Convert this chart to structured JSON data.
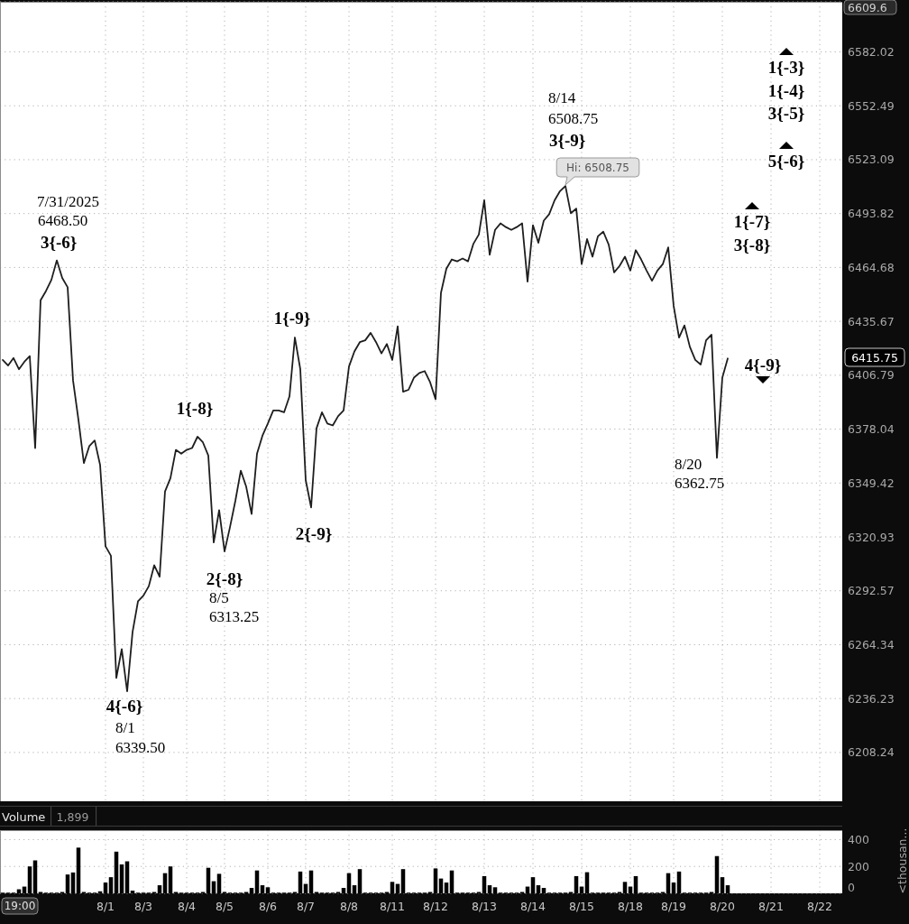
{
  "chart_data": [
    {
      "type": "line",
      "categories": [
        null,
        null,
        null,
        null,
        null,
        null,
        null,
        null,
        null,
        null,
        null,
        null,
        null,
        null,
        null,
        null,
        null,
        null,
        null,
        null,
        null,
        null,
        null,
        null,
        null,
        null,
        null,
        null,
        null,
        null,
        null,
        null,
        null,
        null,
        null,
        null,
        null,
        null,
        null,
        null,
        null,
        null,
        null,
        null,
        null,
        null,
        null,
        null,
        null,
        null,
        null,
        null,
        null,
        null,
        null,
        null,
        null,
        null,
        null,
        null,
        null,
        null,
        null,
        null,
        null,
        null,
        null,
        null,
        null,
        null,
        null,
        null,
        null,
        null,
        null,
        null,
        null,
        null,
        null,
        null,
        null,
        null,
        null,
        null,
        null,
        null,
        null,
        null,
        null,
        null,
        null,
        null,
        null,
        null,
        null,
        null,
        null,
        null,
        null,
        null,
        null,
        null,
        null,
        null,
        null,
        null,
        null,
        null,
        null,
        null,
        null,
        null,
        null,
        null,
        null,
        null,
        null,
        null,
        null,
        null,
        null,
        null,
        null,
        null,
        null,
        null,
        null,
        null,
        null,
        null,
        null,
        null,
        null,
        null,
        null,
        null,
        null,
        null,
        null,
        null,
        null,
        null,
        null,
        null,
        null,
        null,
        null,
        null,
        null,
        null,
        null,
        null,
        null,
        null,
        null,
        null
      ],
      "series": [
        {
          "color": "#1e1e1e",
          "values": [
            6415,
            6412,
            6416,
            6410,
            6414,
            6417,
            6368,
            6447,
            6452,
            6458,
            6468.5,
            6459,
            6454,
            6404,
            6383,
            6360,
            6369,
            6372,
            6359,
            6316,
            6311,
            6247,
            6262,
            6240,
            6271,
            6287,
            6290,
            6295,
            6306,
            6300,
            6345,
            6352,
            6367,
            6365,
            6367,
            6368,
            6374,
            6371,
            6364,
            6318,
            6335,
            6313.25,
            6326,
            6340,
            6356,
            6347.5,
            6333,
            6365,
            6374.5,
            6381,
            6388,
            6388,
            6387,
            6395.5,
            6427,
            6410,
            6351,
            6336.5,
            6378.5,
            6387,
            6381,
            6380,
            6385,
            6388,
            6411.5,
            6419.5,
            6424.5,
            6425.5,
            6429.5,
            6424.5,
            6418.5,
            6423.5,
            6415,
            6433,
            6398,
            6399,
            6405.5,
            6408,
            6409,
            6403,
            6394,
            6451,
            6464,
            6469,
            6468,
            6469.5,
            6468,
            6477.5,
            6482.5,
            6501,
            6471.5,
            6485,
            6488.5,
            6486.5,
            6485,
            6486.5,
            6488.5,
            6457,
            6487.5,
            6478,
            6490,
            6493.5,
            6501,
            6506,
            6508.75,
            6494,
            6496.5,
            6466.5,
            6480,
            6470.5,
            6481.5,
            6484,
            6477,
            6462,
            6465.5,
            6470.5,
            6463,
            6474,
            6469,
            6463,
            6457.5,
            6463,
            6466.5,
            6475.5,
            6444,
            6427,
            6433.5,
            6422,
            6415,
            6412.5,
            6425.5,
            6428.5,
            6362.75,
            6405.5,
            6415.75,
            null,
            null,
            null,
            null,
            null,
            null,
            null,
            null,
            null,
            null,
            null,
            null,
            null,
            null,
            null,
            null,
            null,
            null,
            null,
            null,
            null
          ]
        }
      ],
      "ylim": [
        6183,
        6609.6
      ],
      "yticks": [
        6208.24,
        6236.23,
        6264.34,
        6292.57,
        6320.93,
        6349.42,
        6378.04,
        6406.79,
        6435.67,
        6464.68,
        6493.82,
        6523.09,
        6552.49,
        6582.02,
        6609.6
      ],
      "log": true,
      "grid": true,
      "tick_labels": "y",
      "annotations": [
        "7/31/2025",
        "6468.50",
        "3{-6}",
        "1{-8}",
        "1{-9}",
        "2{-8}",
        "8/5",
        "6313.25",
        "2{-9}",
        "4{-6}",
        "8/1",
        "6339.50",
        "8/14",
        "6508.75",
        "3{-9}",
        "Hi: 6508.75",
        "1{-3}",
        "1{-4}",
        "3{-5}",
        "5{-6}",
        "1{-7}",
        "3{-8}",
        "4{-9}",
        "8/20",
        "6362.75",
        "6415.75"
      ]
    },
    {
      "type": "bar",
      "title": "Volume",
      "subtitle": "1,899",
      "ylabel": "<thousan...",
      "categories": [
        null,
        null,
        null,
        null,
        null,
        null,
        null,
        null,
        null,
        null,
        null,
        null,
        null,
        null,
        null,
        null,
        null,
        null,
        null,
        "8/1",
        null,
        null,
        null,
        null,
        null,
        null,
        "8/3",
        null,
        null,
        null,
        null,
        null,
        null,
        null,
        "8/4",
        null,
        null,
        null,
        null,
        null,
        null,
        "8/5",
        null,
        null,
        null,
        null,
        null,
        null,
        null,
        "8/6",
        null,
        null,
        null,
        null,
        null,
        null,
        "8/7",
        null,
        null,
        null,
        null,
        null,
        null,
        null,
        "8/8",
        null,
        null,
        null,
        null,
        null,
        null,
        null,
        "8/11",
        null,
        null,
        null,
        null,
        null,
        null,
        null,
        "8/12",
        null,
        null,
        null,
        null,
        null,
        null,
        null,
        null,
        "8/13",
        null,
        null,
        null,
        null,
        null,
        null,
        null,
        null,
        "8/14",
        null,
        null,
        null,
        null,
        null,
        null,
        null,
        null,
        "8/15",
        null,
        null,
        null,
        null,
        null,
        null,
        null,
        null,
        "8/18",
        null,
        null,
        null,
        null,
        null,
        null,
        null,
        "8/19",
        null,
        null,
        null,
        null,
        null,
        null,
        null,
        null,
        "8/20",
        null,
        null,
        null,
        null,
        null,
        null,
        null,
        null,
        "8/21",
        null,
        null,
        null,
        null,
        null,
        null,
        null,
        null,
        "8/22",
        null,
        null,
        null,
        null
      ],
      "values": [
        5,
        5,
        5,
        30,
        50,
        200,
        245,
        10,
        5,
        5,
        5,
        10,
        140,
        155,
        340,
        10,
        5,
        5,
        15,
        80,
        120,
        310,
        215,
        238,
        20,
        5,
        5,
        5,
        10,
        60,
        150,
        200,
        10,
        5,
        5,
        5,
        5,
        10,
        190,
        90,
        145,
        10,
        5,
        5,
        5,
        10,
        40,
        170,
        60,
        45,
        5,
        5,
        5,
        5,
        10,
        162,
        70,
        170,
        10,
        5,
        5,
        5,
        10,
        40,
        150,
        60,
        180,
        5,
        5,
        5,
        5,
        10,
        85,
        70,
        180,
        5,
        5,
        5,
        5,
        10,
        185,
        110,
        80,
        170,
        5,
        5,
        5,
        5,
        10,
        128,
        60,
        45,
        5,
        5,
        5,
        5,
        10,
        50,
        120,
        60,
        40,
        5,
        5,
        5,
        5,
        10,
        128,
        50,
        157,
        5,
        5,
        5,
        5,
        5,
        10,
        85,
        50,
        128,
        5,
        5,
        5,
        5,
        10,
        150,
        80,
        162,
        5,
        5,
        5,
        5,
        5,
        10,
        277,
        120,
        60,
        null,
        null,
        null,
        null,
        null,
        null,
        null,
        null,
        null,
        null,
        null,
        null,
        null,
        null,
        null,
        null,
        null,
        null,
        null,
        null,
        null
      ],
      "color": "#000000",
      "ylim": [
        0,
        470
      ],
      "yticks": [
        0,
        200,
        400
      ],
      "grid": true,
      "annotations": [
        "19:00"
      ]
    }
  ]
}
